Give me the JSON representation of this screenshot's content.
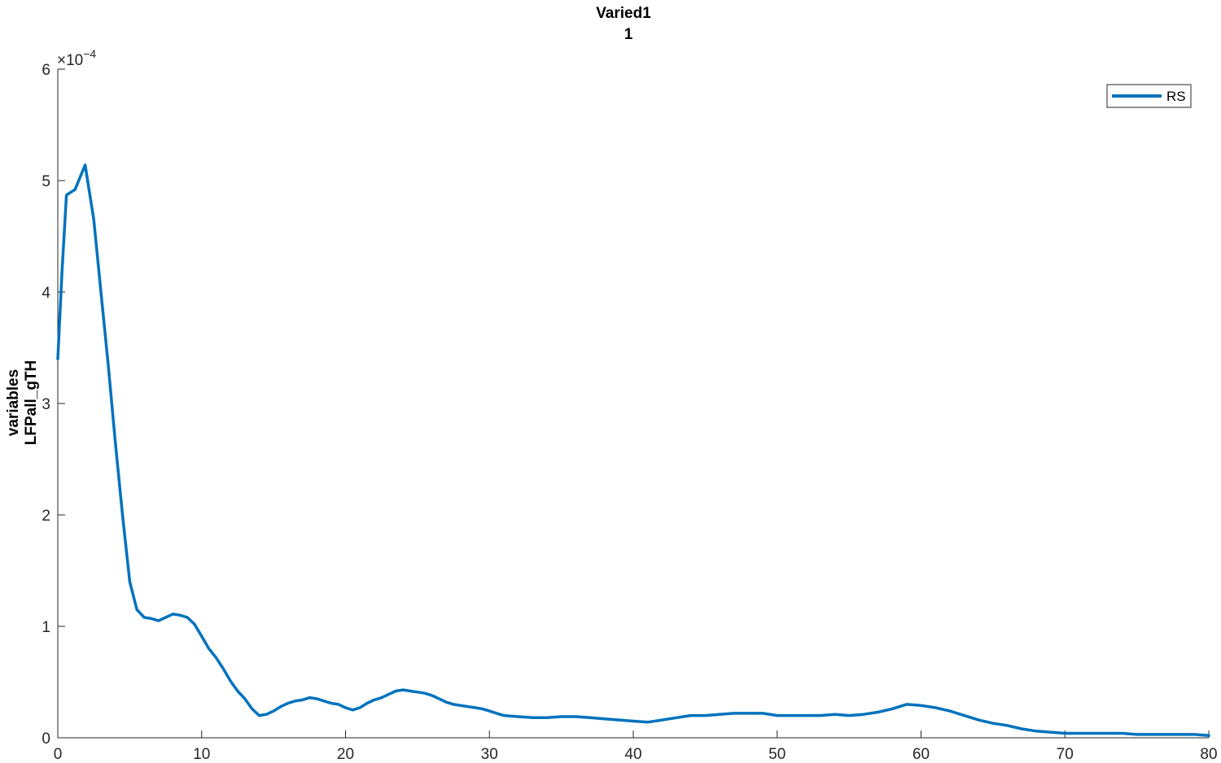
{
  "chart_data": {
    "type": "line",
    "title": [
      "Varied1",
      "1"
    ],
    "xlabel": "",
    "ylabel": [
      "variables",
      "LFPall_gTH"
    ],
    "xlim": [
      0,
      80
    ],
    "ylim": [
      0,
      0.0006
    ],
    "xticks": [
      0,
      10,
      20,
      30,
      40,
      50,
      60,
      70,
      80
    ],
    "xtick_labels": [
      "0",
      "10",
      "20",
      "30",
      "40",
      "50",
      "60",
      "70",
      "80"
    ],
    "yticks": [
      0,
      0.0001,
      0.0002,
      0.0003,
      0.0004,
      0.0005,
      0.0006
    ],
    "ytick_labels": [
      "0",
      "1",
      "2",
      "3",
      "4",
      "5",
      "6"
    ],
    "y_multiplier": "×10",
    "y_exponent": "−4",
    "grid": false,
    "legend": {
      "entries": [
        "RS"
      ],
      "placement": "top-right"
    },
    "line_color": "#0072BD",
    "series": [
      {
        "name": "RS",
        "x": [
          0.0,
          0.3,
          0.6,
          1.2,
          1.9,
          2.5,
          3.0,
          3.5,
          4.0,
          4.5,
          5.0,
          5.5,
          6.0,
          6.5,
          7.0,
          7.5,
          8.0,
          8.5,
          9.0,
          9.5,
          10.0,
          10.5,
          11.0,
          11.5,
          12.0,
          12.5,
          13.0,
          13.5,
          14.0,
          14.5,
          15.0,
          15.5,
          16.0,
          16.5,
          17.0,
          17.5,
          18.0,
          18.5,
          19.0,
          19.5,
          20.0,
          20.5,
          21.0,
          21.5,
          22.0,
          22.5,
          23.0,
          23.5,
          24.0,
          24.5,
          25.0,
          25.5,
          26.0,
          26.5,
          27.0,
          27.5,
          28.0,
          28.5,
          29.0,
          29.5,
          30.0,
          30.5,
          31.0,
          32.0,
          33.0,
          34.0,
          35.0,
          36.0,
          37.0,
          38.0,
          39.0,
          40.0,
          41.0,
          42.0,
          43.0,
          44.0,
          45.0,
          46.0,
          47.0,
          48.0,
          49.0,
          50.0,
          51.0,
          52.0,
          53.0,
          54.0,
          55.0,
          56.0,
          57.0,
          58.0,
          59.0,
          60.0,
          61.0,
          62.0,
          63.0,
          64.0,
          65.0,
          66.0,
          67.0,
          68.0,
          69.0,
          70.0,
          71.0,
          72.0,
          73.0,
          74.0,
          75.0,
          76.0,
          77.0,
          78.0,
          79.0,
          80.0
        ],
        "y": [
          0.00034,
          0.00042,
          0.000487,
          0.000492,
          0.000514,
          0.000465,
          0.0004,
          0.000335,
          0.000265,
          0.0002,
          0.00014,
          0.000115,
          0.000108,
          0.000107,
          0.000105,
          0.000108,
          0.000111,
          0.00011,
          0.000108,
          0.000102,
          9.1e-05,
          8e-05,
          7.2e-05,
          6.2e-05,
          5.1e-05,
          4.2e-05,
          3.5e-05,
          2.6e-05,
          2e-05,
          2.1e-05,
          2.4e-05,
          2.8e-05,
          3.1e-05,
          3.3e-05,
          3.4e-05,
          3.6e-05,
          3.5e-05,
          3.3e-05,
          3.1e-05,
          3e-05,
          2.7e-05,
          2.5e-05,
          2.7e-05,
          3.1e-05,
          3.4e-05,
          3.6e-05,
          3.9e-05,
          4.2e-05,
          4.3e-05,
          4.2e-05,
          4.1e-05,
          4e-05,
          3.8e-05,
          3.5e-05,
          3.2e-05,
          3e-05,
          2.9e-05,
          2.8e-05,
          2.7e-05,
          2.6e-05,
          2.4e-05,
          2.2e-05,
          2e-05,
          1.9e-05,
          1.8e-05,
          1.8e-05,
          1.9e-05,
          1.9e-05,
          1.8e-05,
          1.7e-05,
          1.6e-05,
          1.5e-05,
          1.4e-05,
          1.6e-05,
          1.8e-05,
          2e-05,
          2e-05,
          2.1e-05,
          2.2e-05,
          2.2e-05,
          2.2e-05,
          2e-05,
          2e-05,
          2e-05,
          2e-05,
          2.1e-05,
          2e-05,
          2.1e-05,
          2.3e-05,
          2.6e-05,
          3e-05,
          2.9e-05,
          2.7e-05,
          2.4e-05,
          2e-05,
          1.6e-05,
          1.3e-05,
          1.1e-05,
          8e-06,
          6e-06,
          5e-06,
          4e-06,
          4e-06,
          4e-06,
          4e-06,
          4e-06,
          3e-06,
          3e-06,
          3e-06,
          3e-06,
          3e-06,
          2e-06
        ]
      }
    ]
  }
}
